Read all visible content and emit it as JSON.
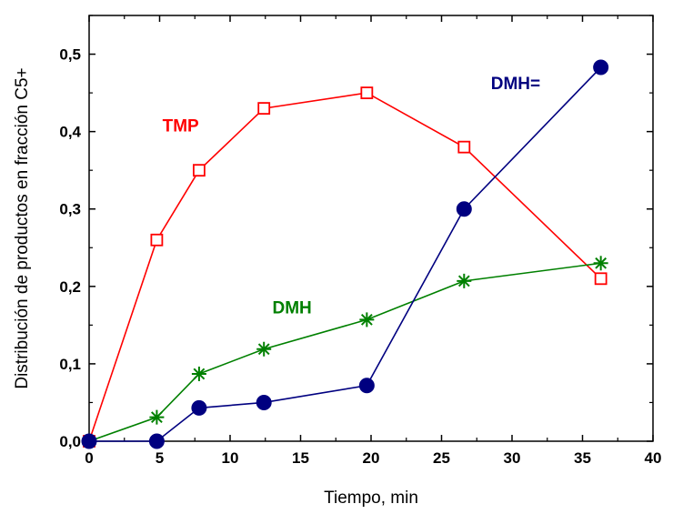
{
  "chart_data": {
    "type": "line",
    "xlabel": "Tiempo, min",
    "ylabel": "Distribución de productos en fracción C5+",
    "xlim": [
      0,
      40
    ],
    "ylim": [
      0,
      0.55
    ],
    "x_ticks": [
      "0",
      "5",
      "10",
      "15",
      "20",
      "25",
      "30",
      "35",
      "40"
    ],
    "y_ticks": [
      "0,0",
      "0,1",
      "0,2",
      "0,3",
      "0,4",
      "0,5"
    ],
    "grid": false,
    "series": [
      {
        "name": "TMP",
        "color": "#ff0000",
        "marker": "open-square",
        "label_position": [
          5.2,
          0.4
        ],
        "x": [
          0,
          4.8,
          7.8,
          12.4,
          19.7,
          26.6,
          36.3
        ],
        "y": [
          0.0,
          0.26,
          0.35,
          0.43,
          0.45,
          0.38,
          0.21
        ]
      },
      {
        "name": "DMH",
        "color": "#008000",
        "marker": "asterisk",
        "label_position": [
          13.0,
          0.165
        ],
        "x": [
          0,
          4.8,
          7.8,
          12.4,
          19.7,
          26.6,
          36.3
        ],
        "y": [
          0.0,
          0.031,
          0.087,
          0.119,
          0.157,
          0.207,
          0.23
        ]
      },
      {
        "name": "DMH=",
        "color": "#000080",
        "marker": "filled-circle",
        "label_position": [
          28.5,
          0.455
        ],
        "x": [
          0,
          4.8,
          7.8,
          12.4,
          19.7,
          26.6,
          36.3
        ],
        "y": [
          0.0,
          0.0,
          0.043,
          0.05,
          0.072,
          0.3,
          0.483
        ]
      }
    ]
  }
}
